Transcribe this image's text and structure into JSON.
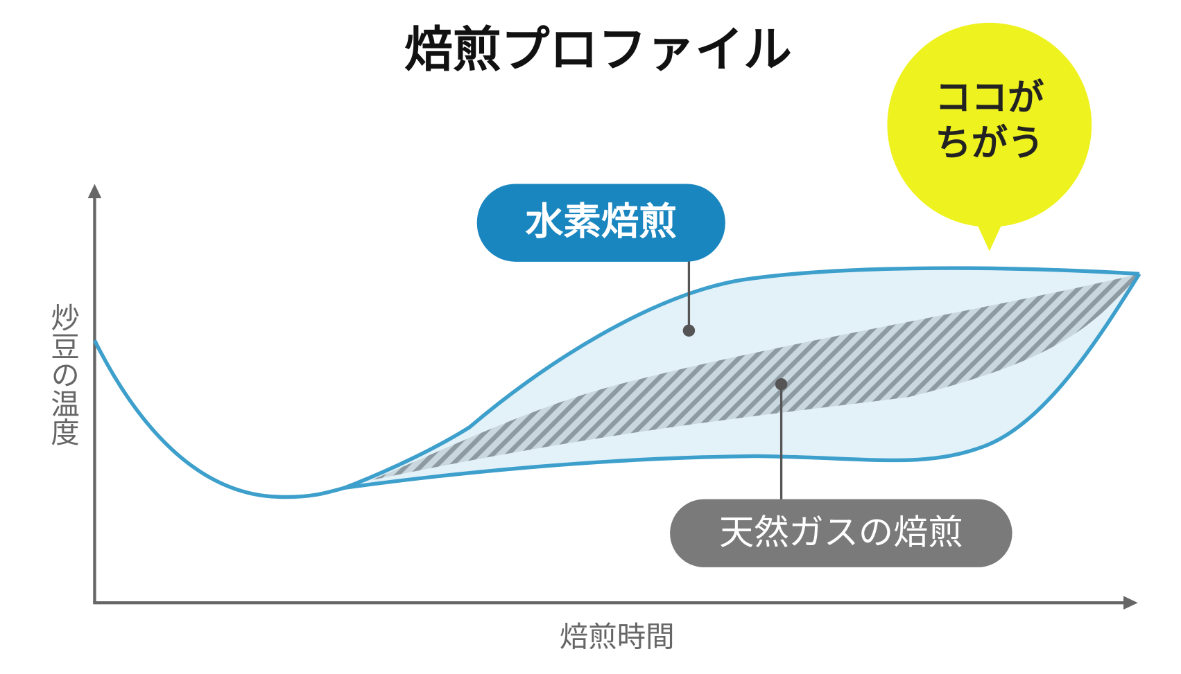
{
  "header": {
    "title": "焙煎プロファイル"
  },
  "axes": {
    "y_label": "炒豆の温度",
    "x_label": "焙煎時間"
  },
  "labels": {
    "hydrogen": "水素焙煎",
    "gas": "天然ガスの焙煎"
  },
  "callout": {
    "lines": [
      "ココが",
      "ちがう"
    ]
  }
}
